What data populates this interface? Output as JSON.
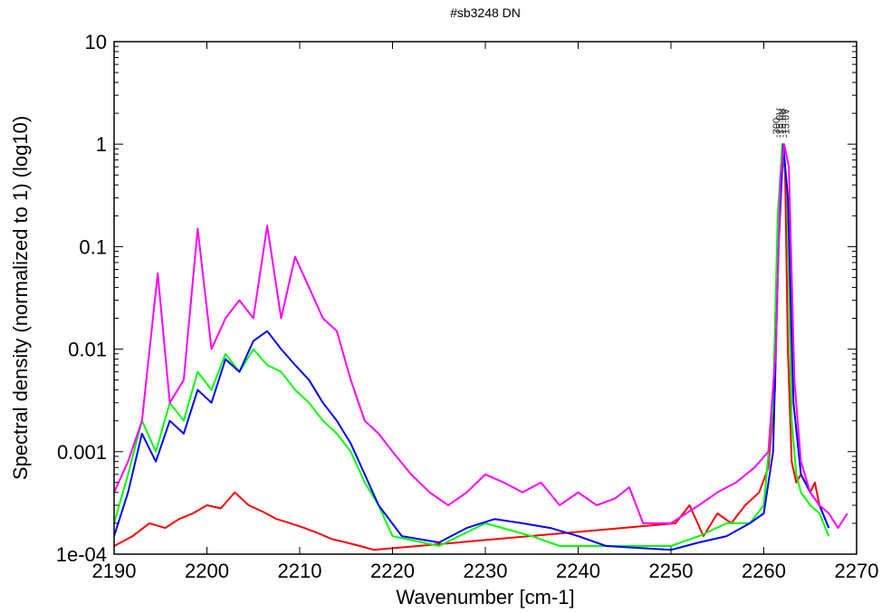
{
  "chart_data": {
    "type": "line",
    "title": "#sb3248 DN",
    "xlabel": "Wavenumber [cm-1]",
    "ylabel": "Spectral density (normalized to 1) (log10)",
    "xlim": [
      2190,
      2270
    ],
    "ylim": [
      0.0001,
      10
    ],
    "yscale": "log10",
    "x_ticks": [
      "2190",
      "2200",
      "2210",
      "2220",
      "2230",
      "2240",
      "2250",
      "2260",
      "2270"
    ],
    "y_ticks": [
      "1e-04",
      "0.001",
      "0.01",
      "0.1",
      "1",
      "10"
    ],
    "grid": false,
    "legend": "none",
    "peak_labels": [
      "-300",
      "-15.0V",
      "-15.0V",
      "-15.0V"
    ],
    "series": [
      {
        "color": "#ff0000",
        "x": [
          2190.0,
          2192.0,
          2193.8,
          2195.5,
          2197.0,
          2198.5,
          2200.0,
          2201.5,
          2203.0,
          2204.5,
          2206.0,
          2207.5,
          2209.0,
          2210.5,
          2212.0,
          2213.5,
          2215.0,
          2216.5,
          2218.0,
          2250.5,
          2252.0,
          2253.5,
          2255.0,
          2256.5,
          2258.0,
          2259.5,
          2260.5,
          2261.2,
          2261.6,
          2262.0,
          2262.3,
          2262.6,
          2263.0,
          2263.5,
          2264.0,
          2264.5,
          2265.0,
          2265.5,
          2266.0,
          2267.0
        ],
        "y": [
          0.00012,
          0.00015,
          0.0002,
          0.00018,
          0.00022,
          0.00025,
          0.0003,
          0.00028,
          0.0004,
          0.0003,
          0.00026,
          0.00022,
          0.0002,
          0.00018,
          0.00016,
          0.00014,
          0.00013,
          0.00012,
          0.00011,
          0.0002,
          0.0003,
          0.00015,
          0.00025,
          0.0002,
          0.0003,
          0.0004,
          0.0007,
          0.004,
          0.15,
          1.0,
          0.5,
          0.01,
          0.0008,
          0.0005,
          0.0006,
          0.0005,
          0.0004,
          0.0005,
          0.0003,
          0.00018
        ]
      },
      {
        "color": "#00ff00",
        "x": [
          2190.0,
          2191.5,
          2193.0,
          2194.5,
          2196.0,
          2197.5,
          2199.0,
          2200.5,
          2202.0,
          2203.5,
          2205.0,
          2206.5,
          2208.0,
          2209.5,
          2211.0,
          2212.5,
          2214.0,
          2215.5,
          2217.0,
          2218.5,
          2220.0,
          2225.0,
          2230.0,
          2235.0,
          2238.0,
          2250.0,
          2253.0,
          2256.0,
          2258.5,
          2260.0,
          2261.0,
          2261.5,
          2262.0,
          2262.5,
          2263.0,
          2263.5,
          2264.0,
          2265.0,
          2266.0,
          2267.0
        ],
        "y": [
          0.0002,
          0.0006,
          0.002,
          0.001,
          0.003,
          0.002,
          0.006,
          0.004,
          0.009,
          0.006,
          0.01,
          0.007,
          0.006,
          0.004,
          0.003,
          0.002,
          0.0015,
          0.001,
          0.0005,
          0.0003,
          0.00015,
          0.00012,
          0.0002,
          0.00015,
          0.00012,
          0.00012,
          0.00015,
          0.0002,
          0.0002,
          0.0003,
          0.003,
          0.2,
          1.0,
          0.4,
          0.002,
          0.0006,
          0.0004,
          0.0003,
          0.00025,
          0.00015
        ]
      },
      {
        "color": "#0000ff",
        "x": [
          2190.0,
          2191.5,
          2193.0,
          2194.5,
          2196.0,
          2197.5,
          2199.0,
          2200.5,
          2202.0,
          2203.5,
          2205.0,
          2206.5,
          2208.0,
          2209.5,
          2211.0,
          2212.5,
          2214.0,
          2215.5,
          2217.0,
          2218.5,
          2221.0,
          2225.0,
          2228.0,
          2231.0,
          2234.0,
          2237.0,
          2240.0,
          2243.0,
          2250.0,
          2253.0,
          2256.0,
          2258.5,
          2260.0,
          2261.0,
          2261.6,
          2262.1,
          2262.6,
          2263.2,
          2264.0,
          2265.0,
          2266.0,
          2267.0
        ],
        "y": [
          0.00015,
          0.0004,
          0.0015,
          0.0008,
          0.002,
          0.0015,
          0.004,
          0.003,
          0.008,
          0.006,
          0.012,
          0.015,
          0.01,
          0.007,
          0.005,
          0.003,
          0.002,
          0.0012,
          0.0006,
          0.0003,
          0.00015,
          0.00013,
          0.00018,
          0.00022,
          0.0002,
          0.00018,
          0.00015,
          0.00012,
          0.00011,
          0.00013,
          0.00015,
          0.0002,
          0.00025,
          0.001,
          0.1,
          1.0,
          0.3,
          0.003,
          0.0006,
          0.0004,
          0.0003,
          0.00018
        ]
      },
      {
        "color": "#ff00ff",
        "x": [
          2190.0,
          2191.5,
          2193.0,
          2194.7,
          2196.0,
          2197.5,
          2199.0,
          2200.5,
          2202.0,
          2203.5,
          2205.0,
          2206.5,
          2208.0,
          2209.5,
          2211.0,
          2212.5,
          2214.0,
          2215.5,
          2217.0,
          2218.5,
          2220.0,
          2222.0,
          2224.0,
          2226.0,
          2228.0,
          2230.0,
          2232.0,
          2234.0,
          2236.0,
          2238.0,
          2240.0,
          2242.0,
          2244.0,
          2245.5,
          2247.0,
          2250.0,
          2253.0,
          2255.0,
          2257.0,
          2259.0,
          2260.5,
          2261.3,
          2261.8,
          2262.2,
          2262.7,
          2263.3,
          2264.0,
          2265.0,
          2266.0,
          2267.0,
          2268.0,
          2269.0
        ],
        "y": [
          0.0004,
          0.0008,
          0.002,
          0.055,
          0.003,
          0.005,
          0.15,
          0.01,
          0.02,
          0.03,
          0.02,
          0.16,
          0.02,
          0.08,
          0.04,
          0.02,
          0.015,
          0.005,
          0.002,
          0.0015,
          0.001,
          0.0006,
          0.0004,
          0.0003,
          0.0004,
          0.0006,
          0.0005,
          0.0004,
          0.0005,
          0.0003,
          0.0004,
          0.0003,
          0.00035,
          0.00045,
          0.0002,
          0.0002,
          0.0003,
          0.0004,
          0.0005,
          0.0007,
          0.001,
          0.01,
          0.5,
          1.0,
          0.6,
          0.005,
          0.0008,
          0.0004,
          0.0003,
          0.00025,
          0.00018,
          0.00025
        ]
      }
    ]
  }
}
